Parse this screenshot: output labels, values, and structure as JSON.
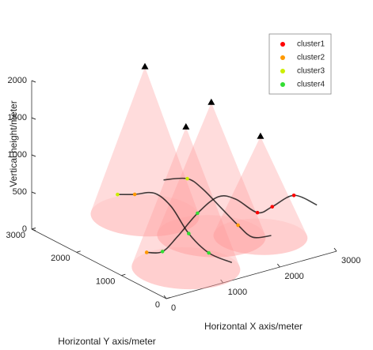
{
  "chart_data": {
    "type": "scatter3d",
    "zlabel": "Vertical height/meter",
    "ylabel": "Horizontal Y axis/meter",
    "xlabel": "Horizontal X axis/meter",
    "xlim": [
      0,
      3000
    ],
    "ylim": [
      0,
      3000
    ],
    "zlim": [
      0,
      2000
    ],
    "xticks": [
      0,
      1000,
      2000,
      3000
    ],
    "yticks": [
      0,
      1000,
      2000,
      3000
    ],
    "zticks": [
      0,
      500,
      1000,
      1500,
      2000
    ],
    "cone_color": "#ff9a9a",
    "cones": [
      {
        "x": 1600,
        "y": 2500,
        "z": 2000,
        "radius": 750
      },
      {
        "x": 900,
        "y": 700,
        "z": 1900,
        "radius": 750
      },
      {
        "x": 1900,
        "y": 1400,
        "z": 1800,
        "radius": 750
      },
      {
        "x": 2450,
        "y": 1000,
        "z": 1350,
        "radius": 650
      }
    ],
    "trajectory_color": "#111111",
    "trajectories": [
      {
        "x": [
          1750,
          1950,
          2200,
          2100,
          1700,
          1500,
          1550
        ],
        "y": [
          3300,
          3170,
          3050,
          2550,
          1650,
          950,
          500
        ]
      },
      {
        "x": [
          800,
          1000,
          1500,
          2250,
          2850,
          3000,
          2950,
          3250,
          3750,
          3800
        ],
        "y": [
          1450,
          1350,
          1650,
          2150,
          2450,
          2250,
          1700,
          1750,
          1900,
          1450
        ]
      },
      {
        "x": [
          2600,
          2900,
          2850,
          2650,
          2450,
          2350,
          2600
        ],
        "y": [
          3350,
          3200,
          2800,
          2150,
          1500,
          1050,
          950
        ]
      }
    ],
    "series": [
      {
        "name": "cluster1",
        "color": "#ff0000",
        "x": [
          2950,
          3250,
          3750
        ],
        "y": [
          1700,
          1750,
          1900
        ]
      },
      {
        "name": "cluster2",
        "color": "#ff9900",
        "x": [
          1950,
          2450,
          800
        ],
        "y": [
          3170,
          1500,
          1450
        ]
      },
      {
        "name": "cluster3",
        "color": "#ccee00",
        "x": [
          2900,
          1750
        ],
        "y": [
          3200,
          3300
        ]
      },
      {
        "name": "cluster4",
        "color": "#33dd33",
        "x": [
          1700,
          2250,
          1000,
          1500
        ],
        "y": [
          1650,
          2150,
          1350,
          950
        ]
      }
    ]
  }
}
